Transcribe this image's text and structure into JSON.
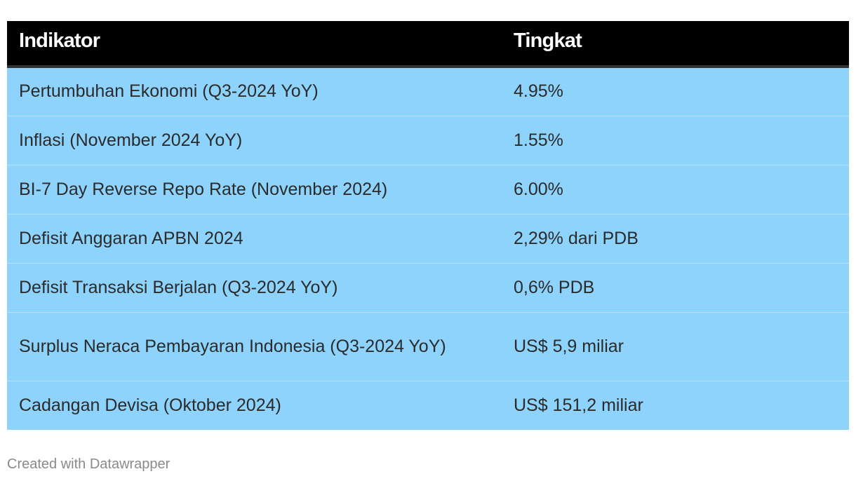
{
  "chart_data": {
    "type": "table",
    "columns": [
      "Indikator",
      "Tingkat"
    ],
    "rows": [
      [
        "Pertumbuhan Ekonomi (Q3-2024 YoY)",
        "4.95%"
      ],
      [
        "Inflasi (November 2024 YoY)",
        "1.55%"
      ],
      [
        "BI-7 Day Reverse Repo Rate (November 2024)",
        "6.00%"
      ],
      [
        "Defisit Anggaran APBN 2024",
        "2,29% dari PDB"
      ],
      [
        "Defisit Transaksi Berjalan (Q3-2024 YoY)",
        "0,6% PDB"
      ],
      [
        "Surplus Neraca Pembayaran Indonesia (Q3-2024 YoY)",
        "US$ 5,9 miliar"
      ],
      [
        "Cadangan Devisa (Oktober 2024)",
        "US$ 151,2 miliar"
      ]
    ]
  },
  "footer": "Created with Datawrapper",
  "colors": {
    "header_bg": "#000000",
    "header_text": "#ffffff",
    "row_bg": "#8dd3fc",
    "row_text": "#2b2b2b",
    "footer_text": "#8a8a8a"
  }
}
